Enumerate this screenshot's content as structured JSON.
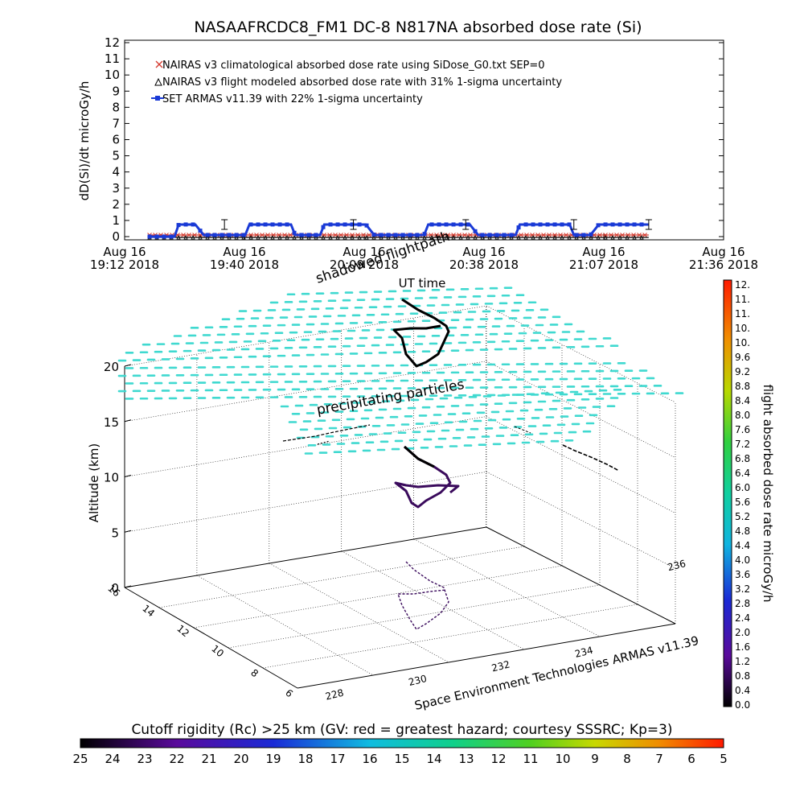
{
  "chart_data": [
    {
      "type": "line",
      "title": "NASAAFRCDC8_FM1 DC-8   N817NA absorbed dose rate (Si)",
      "ylabel": "dD(Si)/dt microGy/h",
      "xlabel": "UT time",
      "ylim": [
        0,
        12
      ],
      "yticks": [
        "0",
        "1",
        "2",
        "3",
        "4",
        "5",
        "6",
        "7",
        "8",
        "9",
        "10",
        "11",
        "12"
      ],
      "x_ticks": [
        {
          "top": "Aug 16",
          "bottom": "19:12 2018"
        },
        {
          "top": "Aug 16",
          "bottom": "19:40 2018"
        },
        {
          "top": "Aug 16",
          "bottom": "20:09 2018"
        },
        {
          "top": "Aug 16",
          "bottom": "20:38 2018"
        },
        {
          "top": "Aug 16",
          "bottom": "21:07 2018"
        },
        {
          "top": "Aug 16",
          "bottom": "21:36 2018"
        }
      ],
      "xlim_minutes": [
        0,
        144
      ],
      "legend": [
        "NAIRAS v3 climatological absorbed dose rate using SiDose_G0.txt SEP=0",
        "NAIRAS v3 flight modeled absorbed dose rate with 31% 1-sigma uncertainty",
        "SET ARMAS v11.39 with 22% 1-sigma uncertainty"
      ],
      "legend_position": "top-left",
      "series": [
        {
          "name": "NAIRAS v3 climatological absorbed dose rate using SiDose_G0.txt SEP=0",
          "color": "#d43a2e",
          "marker": "x",
          "x": [
            6,
            126
          ],
          "y": [
            0.1,
            0.1
          ]
        },
        {
          "name": "NAIRAS v3 flight modeled absorbed dose rate with 31% 1-sigma uncertainty",
          "color": "#000000",
          "marker": "triangle",
          "x": [
            6,
            126
          ],
          "y": [
            -0.05,
            -0.05
          ]
        },
        {
          "name": "SET ARMAS v11.39 with 22% 1-sigma uncertainty",
          "color": "#1a3ad6",
          "marker": "square",
          "x": [
            6,
            12,
            13,
            17,
            19,
            29,
            30,
            40,
            41,
            47,
            48,
            58,
            60,
            72,
            73,
            83,
            85,
            94,
            95,
            107,
            108,
            112,
            114,
            126
          ],
          "y": [
            0,
            0,
            0.75,
            0.75,
            0.1,
            0.1,
            0.75,
            0.75,
            0.1,
            0.1,
            0.75,
            0.75,
            0.1,
            0.1,
            0.75,
            0.75,
            0.1,
            0.1,
            0.75,
            0.75,
            0.1,
            0.1,
            0.75,
            0.75
          ]
        }
      ]
    },
    {
      "type": "scatter",
      "chart_kind": "3d-trajectory",
      "zlabel": "Altitude (km)",
      "zlim": [
        0,
        20
      ],
      "zticks": [
        "0",
        "5",
        "10",
        "15",
        "20"
      ],
      "depth_ticks": [
        "16",
        "14",
        "12",
        "10",
        "8",
        "6"
      ],
      "lon_ticks": [
        "228",
        "230",
        "232",
        "234",
        "236"
      ],
      "annotations": [
        "shadowed flightpath",
        "precipitating particles"
      ],
      "credit": "Space Environment Technologies ARMAS v11.39",
      "rigidity_label": "Cutoff rigidity (Rc) >25 km (GV: red = greatest hazard; courtesy SSSRC; Kp=3)",
      "rigidity_ticks": [
        "25",
        "24",
        "23",
        "22",
        "21",
        "20",
        "19",
        "18",
        "17",
        "16",
        "15",
        "14",
        "13",
        "12",
        "11",
        "10",
        "9",
        "8",
        "7",
        "6",
        "5"
      ],
      "dose_colorbar_label": "flight absorbed dose rate microGy/h",
      "dose_colorbar_ticks": [
        "0.0",
        "0.4",
        "0.8",
        "1.2",
        "1.6",
        "2.0",
        "2.4",
        "2.8",
        "3.2",
        "3.6",
        "4.0",
        "4.4",
        "4.8",
        "5.2",
        "5.6",
        "6.0",
        "6.4",
        "6.8",
        "7.2",
        "7.6",
        "8.0",
        "8.4",
        "8.8",
        "9.2",
        "9.6",
        "10.",
        "10.",
        "11.",
        "11.",
        "12."
      ],
      "colors": {
        "precipitating_particles": "#40d9d0",
        "flight_path_high": "#000000",
        "flight_path_low": "#3a0a5c"
      }
    }
  ]
}
